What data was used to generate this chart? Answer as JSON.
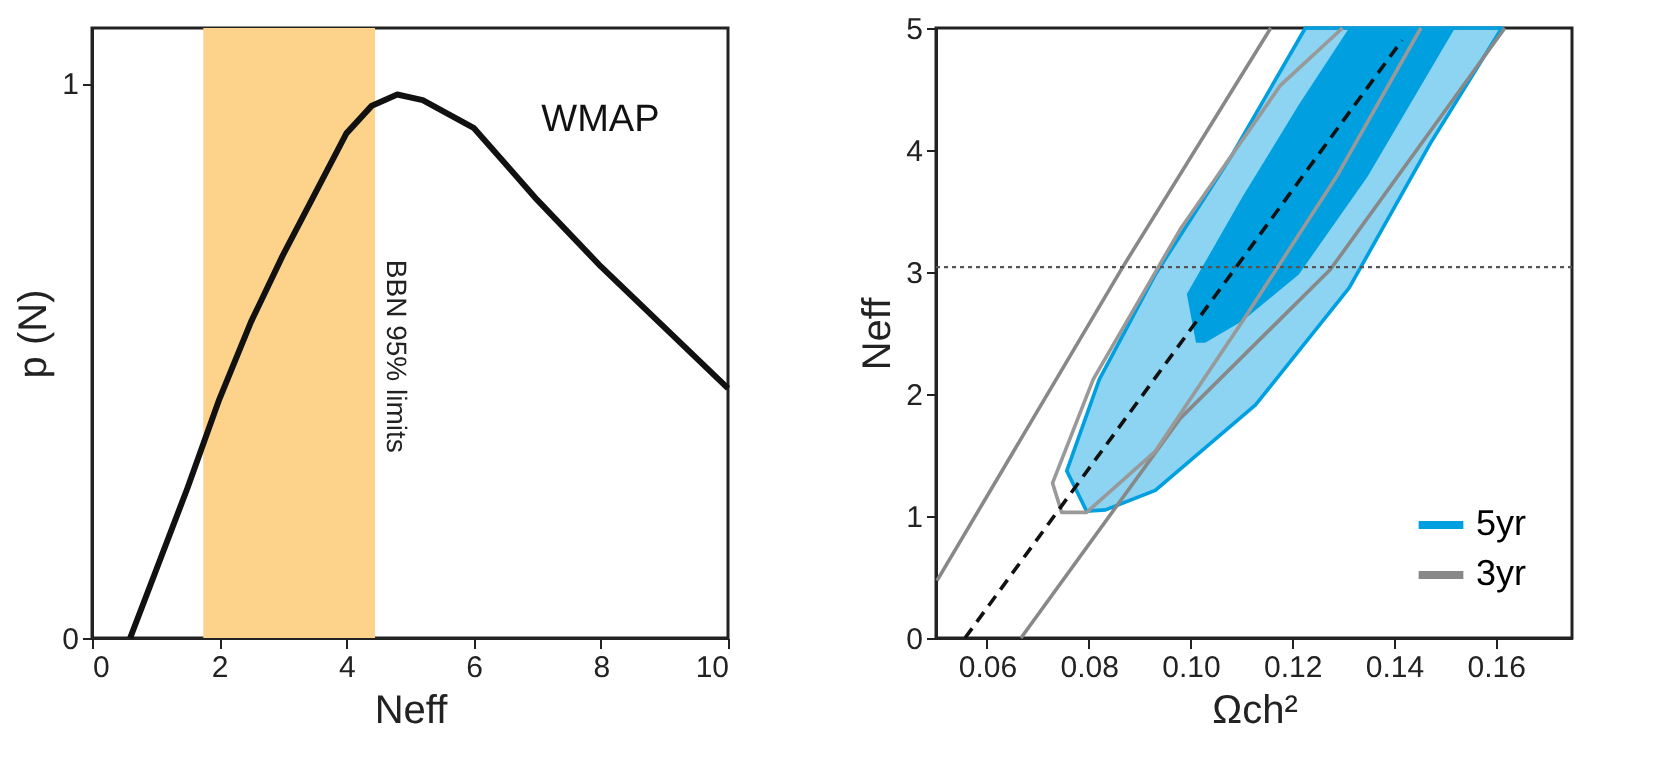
{
  "chart_data": [
    {
      "type": "line",
      "xlabel": "Neff",
      "ylabel": "p (N)",
      "xlim": [
        0,
        10
      ],
      "ylim": [
        0,
        1.1
      ],
      "xticks": [
        0,
        2,
        4,
        6,
        8,
        10
      ],
      "yticks": [
        0,
        1
      ],
      "grid": false,
      "series": [
        {
          "name": "WMAP",
          "color": "#111111",
          "x": [
            0.6,
            1,
            1.5,
            2,
            2.5,
            3,
            3.5,
            4,
            4.4,
            4.8,
            5.2,
            6,
            7,
            8,
            9,
            10
          ],
          "values": [
            0,
            0.12,
            0.27,
            0.43,
            0.57,
            0.69,
            0.8,
            0.91,
            0.96,
            0.98,
            0.97,
            0.92,
            0.79,
            0.67,
            0.56,
            0.45
          ]
        }
      ],
      "bands": [
        {
          "axis": "x",
          "from": 1.75,
          "to": 4.45,
          "label": "BBN 95% limits",
          "color": "#fdd28a"
        }
      ]
    },
    {
      "type": "line",
      "xlabel": "Ωch²",
      "ylabel": "Neff",
      "xlim": [
        0.05,
        0.175
      ],
      "ylim": [
        0,
        5
      ],
      "xticks": [
        {
          "value": 0.06,
          "label": "0.06"
        },
        {
          "value": 0.08,
          "label": "0.08"
        },
        {
          "value": 0.1,
          "label": "0.10"
        },
        {
          "value": 0.12,
          "label": "0.12"
        },
        {
          "value": 0.14,
          "label": "0.14"
        },
        {
          "value": 0.16,
          "label": "0.16"
        }
      ],
      "yticks": [
        0,
        1,
        2,
        3,
        4,
        5
      ],
      "grid": false,
      "legend": "bottom right",
      "series": [
        {
          "type": "area",
          "name": "5yr",
          "color": "#00a0e0",
          "x": [
            0.0796,
            0.0757,
            0.0821,
            0.0931,
            0.1079,
            0.1226,
            0.1612,
            0.1471,
            0.1312,
            0.1128,
            0.0931,
            0.0833,
            0.0796
          ],
          "values": [
            1.04,
            1.37,
            2.12,
            2.98,
            3.94,
            5.0,
            5.0,
            4.05,
            2.87,
            1.91,
            1.21,
            1.05,
            1.04
          ]
        },
        {
          "type": "area",
          "color": "#00a0e0",
          "x": [
            0.1011,
            0.0993,
            0.1103,
            0.1213,
            0.1312,
            0.152,
            0.1348,
            0.1213,
            0.1103,
            0.1029,
            0.1011
          ],
          "values": [
            2.42,
            2.82,
            3.62,
            4.37,
            5.0,
            5.0,
            3.78,
            2.98,
            2.6,
            2.42,
            2.42
          ]
        },
        {
          "type": "line",
          "name": "3yr",
          "color": "#888888",
          "x": [
            0.0502,
            0.0864,
            0.1158
          ],
          "values": [
            0.47,
            3.02,
            5.0
          ]
        },
        {
          "type": "line",
          "color": "#888888",
          "x": [
            0.0667,
            0.098,
            0.1275,
            0.1618
          ],
          "values": [
            0,
            1.8,
            3.02,
            5.0
          ]
        },
        {
          "type": "line",
          "color": "#999999",
          "x": [
            0.1299,
            0.1177,
            0.098,
            0.0809,
            0.0729,
            0.0747,
            0.0796,
            0.0931,
            0.1103,
            0.1287,
            0.1453
          ],
          "values": [
            5.0,
            4.53,
            3.35,
            2.12,
            1.27,
            1.03,
            1.03,
            1.53,
            2.6,
            3.78,
            5.0
          ]
        },
        {
          "type": "line",
          "color": "#111111",
          "line_style": "dashed",
          "x": [
            0.0557,
            0.1416
          ],
          "values": [
            0,
            4.9
          ]
        }
      ],
      "ref_lines": [
        {
          "axis": "y",
          "value": 3.04,
          "color": "#555555",
          "line_style": "dotted"
        }
      ]
    }
  ]
}
